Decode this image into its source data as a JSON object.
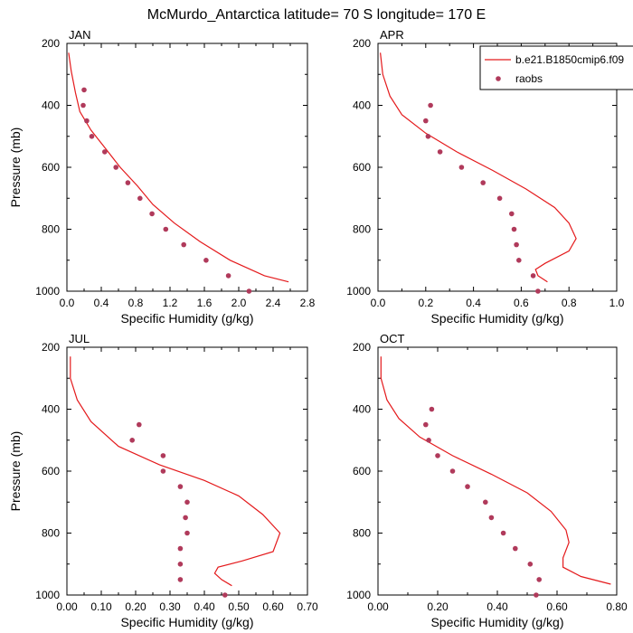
{
  "title": "McMurdo_Antarctica  latitude= 70 S longitude= 170 E",
  "colors": {
    "model": "#e41a1c",
    "obs": "#b03a5b"
  },
  "legend": {
    "placement": "top-right",
    "model_label": "b.e21.B1850cmip6.f09",
    "obs_label": "raobs"
  },
  "chart_data": [
    {
      "type": "line",
      "panel_label": "JAN",
      "xlabel": "Specific Humidity (g/kg)",
      "ylabel": "Pressure (mb)",
      "xlim": [
        0,
        2.8
      ],
      "xticks": [
        "0.0",
        "0.4",
        "0.8",
        "1.2",
        "1.6",
        "2.0",
        "2.4",
        "2.8"
      ],
      "xtick_values": [
        0,
        0.4,
        0.8,
        1.2,
        1.6,
        2.0,
        2.4,
        2.8
      ],
      "ylim": [
        1000,
        200
      ],
      "yticks": [
        200,
        400,
        600,
        800,
        1000
      ],
      "series": [
        {
          "name": "b.e21.B1850cmip6.f09",
          "kind": "line",
          "points": [
            [
              0.02,
              230
            ],
            [
              0.05,
              290
            ],
            [
              0.1,
              360
            ],
            [
              0.15,
              420
            ],
            [
              0.28,
              480
            ],
            [
              0.45,
              540
            ],
            [
              0.62,
              600
            ],
            [
              0.82,
              660
            ],
            [
              1.0,
              720
            ],
            [
              1.25,
              780
            ],
            [
              1.55,
              840
            ],
            [
              1.9,
              900
            ],
            [
              2.3,
              950
            ],
            [
              2.58,
              970
            ]
          ]
        },
        {
          "name": "raobs",
          "kind": "scatter",
          "points": [
            [
              0.2,
              350
            ],
            [
              0.19,
              400
            ],
            [
              0.23,
              450
            ],
            [
              0.29,
              500
            ],
            [
              0.44,
              550
            ],
            [
              0.57,
              600
            ],
            [
              0.71,
              650
            ],
            [
              0.85,
              700
            ],
            [
              0.99,
              750
            ],
            [
              1.15,
              800
            ],
            [
              1.36,
              850
            ],
            [
              1.62,
              900
            ],
            [
              1.88,
              950
            ],
            [
              2.12,
              1000
            ]
          ]
        }
      ]
    },
    {
      "type": "line",
      "panel_label": "APR",
      "xlabel": "Specific Humidity (g/kg)",
      "ylabel": "",
      "xlim": [
        0,
        1.0
      ],
      "xticks": [
        "0.0",
        "0.2",
        "0.4",
        "0.6",
        "0.8",
        "1.0"
      ],
      "xtick_values": [
        0,
        0.2,
        0.4,
        0.6,
        0.8,
        1.0
      ],
      "ylim": [
        1000,
        200
      ],
      "yticks": [
        200,
        400,
        600,
        800,
        1000
      ],
      "series": [
        {
          "name": "b.e21.B1850cmip6.f09",
          "kind": "line",
          "points": [
            [
              0.01,
              230
            ],
            [
              0.02,
              300
            ],
            [
              0.05,
              370
            ],
            [
              0.1,
              430
            ],
            [
              0.2,
              490
            ],
            [
              0.33,
              550
            ],
            [
              0.48,
              610
            ],
            [
              0.62,
              670
            ],
            [
              0.74,
              730
            ],
            [
              0.8,
              780
            ],
            [
              0.83,
              830
            ],
            [
              0.8,
              870
            ],
            [
              0.7,
              910
            ],
            [
              0.66,
              930
            ],
            [
              0.67,
              950
            ],
            [
              0.71,
              970
            ]
          ]
        },
        {
          "name": "raobs",
          "kind": "scatter",
          "points": [
            [
              0.22,
              400
            ],
            [
              0.2,
              450
            ],
            [
              0.21,
              500
            ],
            [
              0.26,
              550
            ],
            [
              0.35,
              600
            ],
            [
              0.44,
              650
            ],
            [
              0.51,
              700
            ],
            [
              0.56,
              750
            ],
            [
              0.57,
              800
            ],
            [
              0.58,
              850
            ],
            [
              0.59,
              900
            ],
            [
              0.65,
              950
            ],
            [
              0.67,
              1000
            ]
          ]
        }
      ]
    },
    {
      "type": "line",
      "panel_label": "JUL",
      "xlabel": "Specific Humidity (g/kg)",
      "ylabel": "Pressure (mb)",
      "xlim": [
        0,
        0.7
      ],
      "xticks": [
        "0.00",
        "0.10",
        "0.20",
        "0.30",
        "0.40",
        "0.50",
        "0.60",
        "0.70"
      ],
      "xtick_values": [
        0,
        0.1,
        0.2,
        0.3,
        0.4,
        0.5,
        0.6,
        0.7
      ],
      "ylim": [
        1000,
        200
      ],
      "yticks": [
        200,
        400,
        600,
        800,
        1000
      ],
      "series": [
        {
          "name": "b.e21.B1850cmip6.f09",
          "kind": "line",
          "points": [
            [
              0.01,
              230
            ],
            [
              0.01,
              300
            ],
            [
              0.03,
              370
            ],
            [
              0.07,
              440
            ],
            [
              0.15,
              520
            ],
            [
              0.27,
              580
            ],
            [
              0.4,
              630
            ],
            [
              0.5,
              680
            ],
            [
              0.57,
              740
            ],
            [
              0.62,
              800
            ],
            [
              0.6,
              860
            ],
            [
              0.51,
              890
            ],
            [
              0.44,
              910
            ],
            [
              0.43,
              930
            ],
            [
              0.45,
              950
            ],
            [
              0.48,
              970
            ]
          ]
        },
        {
          "name": "raobs",
          "kind": "scatter",
          "points": [
            [
              0.21,
              450
            ],
            [
              0.19,
              500
            ],
            [
              0.28,
              550
            ],
            [
              0.28,
              600
            ],
            [
              0.33,
              650
            ],
            [
              0.35,
              700
            ],
            [
              0.345,
              750
            ],
            [
              0.35,
              800
            ],
            [
              0.33,
              850
            ],
            [
              0.33,
              900
            ],
            [
              0.33,
              950
            ],
            [
              0.46,
              1000
            ]
          ]
        }
      ]
    },
    {
      "type": "line",
      "panel_label": "OCT",
      "xlabel": "Specific Humidity (g/kg)",
      "ylabel": "",
      "xlim": [
        0,
        0.8
      ],
      "xticks": [
        "0.00",
        "0.20",
        "0.40",
        "0.60",
        "0.80"
      ],
      "xtick_values": [
        0,
        0.2,
        0.4,
        0.6,
        0.8
      ],
      "ylim": [
        1000,
        200
      ],
      "yticks": [
        200,
        400,
        600,
        800,
        1000
      ],
      "series": [
        {
          "name": "b.e21.B1850cmip6.f09",
          "kind": "line",
          "points": [
            [
              0.01,
              230
            ],
            [
              0.01,
              300
            ],
            [
              0.03,
              370
            ],
            [
              0.07,
              430
            ],
            [
              0.14,
              490
            ],
            [
              0.25,
              550
            ],
            [
              0.38,
              610
            ],
            [
              0.5,
              670
            ],
            [
              0.58,
              730
            ],
            [
              0.63,
              790
            ],
            [
              0.64,
              830
            ],
            [
              0.62,
              880
            ],
            [
              0.62,
              910
            ],
            [
              0.68,
              940
            ],
            [
              0.78,
              965
            ]
          ]
        },
        {
          "name": "raobs",
          "kind": "scatter",
          "points": [
            [
              0.18,
              400
            ],
            [
              0.16,
              450
            ],
            [
              0.17,
              500
            ],
            [
              0.2,
              550
            ],
            [
              0.25,
              600
            ],
            [
              0.3,
              650
            ],
            [
              0.36,
              700
            ],
            [
              0.38,
              750
            ],
            [
              0.42,
              800
            ],
            [
              0.46,
              850
            ],
            [
              0.51,
              900
            ],
            [
              0.54,
              950
            ],
            [
              0.53,
              1000
            ]
          ]
        }
      ]
    }
  ]
}
